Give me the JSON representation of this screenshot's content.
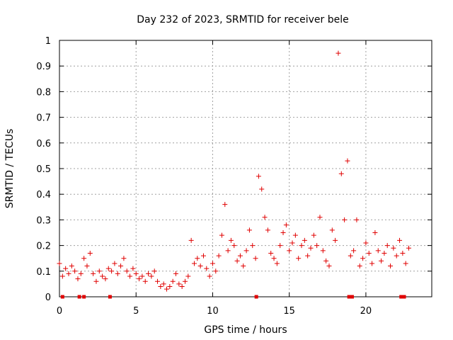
{
  "chart_data": {
    "type": "scatter",
    "title": "Day 232 of 2023, SRMTID for receiver bele",
    "xlabel": "GPS time / hours",
    "ylabel": "SRMTID / TECUs",
    "xlim": [
      0,
      24.3
    ],
    "ylim": [
      0,
      1
    ],
    "xticks": [
      0,
      5,
      10,
      15,
      20
    ],
    "xtick_labels": [
      "0",
      "5",
      "10",
      "15",
      "20"
    ],
    "yticks": [
      0,
      0.1,
      0.2,
      0.3,
      0.4,
      0.5,
      0.6,
      0.7,
      0.8,
      0.9,
      1
    ],
    "ytick_labels": [
      "0",
      "0.1",
      "0.2",
      "0.3",
      "0.4",
      "0.5",
      "0.6",
      "0.7",
      "0.8",
      "0.9",
      "1"
    ],
    "grid": true,
    "marker": "+",
    "color": "#e00000",
    "series": [
      {
        "name": "SRMTID",
        "x": [
          0.0,
          0.2,
          0.4,
          0.6,
          0.8,
          1.0,
          1.2,
          1.4,
          1.6,
          1.8,
          2.0,
          2.2,
          2.4,
          2.6,
          2.8,
          3.0,
          3.2,
          3.4,
          3.6,
          3.8,
          4.0,
          4.2,
          4.4,
          4.6,
          4.8,
          5.0,
          5.2,
          5.4,
          5.6,
          5.8,
          6.0,
          6.2,
          6.4,
          6.6,
          6.8,
          7.0,
          7.2,
          7.4,
          7.6,
          7.8,
          8.0,
          8.2,
          8.4,
          8.6,
          8.8,
          9.0,
          9.2,
          9.4,
          9.6,
          9.8,
          10.0,
          10.2,
          10.4,
          10.6,
          10.8,
          11.0,
          11.2,
          11.4,
          11.6,
          11.8,
          12.0,
          12.2,
          12.4,
          12.6,
          12.8,
          13.0,
          13.2,
          13.4,
          13.6,
          13.8,
          14.0,
          14.2,
          14.4,
          14.6,
          14.8,
          15.0,
          15.2,
          15.4,
          15.6,
          15.8,
          16.0,
          16.2,
          16.4,
          16.6,
          16.8,
          17.0,
          17.2,
          17.4,
          17.6,
          17.8,
          18.0,
          18.2,
          18.4,
          18.6,
          18.8,
          19.0,
          19.2,
          19.4,
          19.6,
          19.8,
          20.0,
          20.2,
          20.4,
          20.6,
          20.8,
          21.0,
          21.2,
          21.4,
          21.6,
          21.8,
          22.0,
          22.2,
          22.4,
          22.6,
          22.8
        ],
        "y": [
          0.13,
          0.08,
          0.11,
          0.09,
          0.12,
          0.1,
          0.07,
          0.09,
          0.15,
          0.12,
          0.17,
          0.09,
          0.06,
          0.1,
          0.08,
          0.07,
          0.11,
          0.1,
          0.13,
          0.09,
          0.12,
          0.15,
          0.1,
          0.08,
          0.11,
          0.09,
          0.07,
          0.08,
          0.06,
          0.09,
          0.08,
          0.1,
          0.06,
          0.04,
          0.05,
          0.03,
          0.04,
          0.06,
          0.09,
          0.05,
          0.04,
          0.06,
          0.08,
          0.22,
          0.13,
          0.15,
          0.12,
          0.16,
          0.11,
          0.08,
          0.13,
          0.1,
          0.16,
          0.24,
          0.36,
          0.18,
          0.22,
          0.2,
          0.14,
          0.16,
          0.12,
          0.18,
          0.26,
          0.2,
          0.15,
          0.47,
          0.42,
          0.31,
          0.26,
          0.17,
          0.15,
          0.13,
          0.2,
          0.25,
          0.28,
          0.18,
          0.21,
          0.24,
          0.15,
          0.2,
          0.22,
          0.16,
          0.19,
          0.24,
          0.2,
          0.31,
          0.18,
          0.14,
          0.12,
          0.26,
          0.22,
          0.95,
          0.48,
          0.3,
          0.53,
          0.16,
          0.18,
          0.3,
          0.12,
          0.15,
          0.21,
          0.17,
          0.13,
          0.25,
          0.18,
          0.14,
          0.17,
          0.2,
          0.12,
          0.19,
          0.16,
          0.22,
          0.17,
          0.13,
          0.19
        ]
      }
    ],
    "gap_markers_x": [
      0.2,
      1.3,
      1.6,
      3.3,
      12.85,
      18.9,
      19.1,
      22.3,
      22.5
    ]
  }
}
